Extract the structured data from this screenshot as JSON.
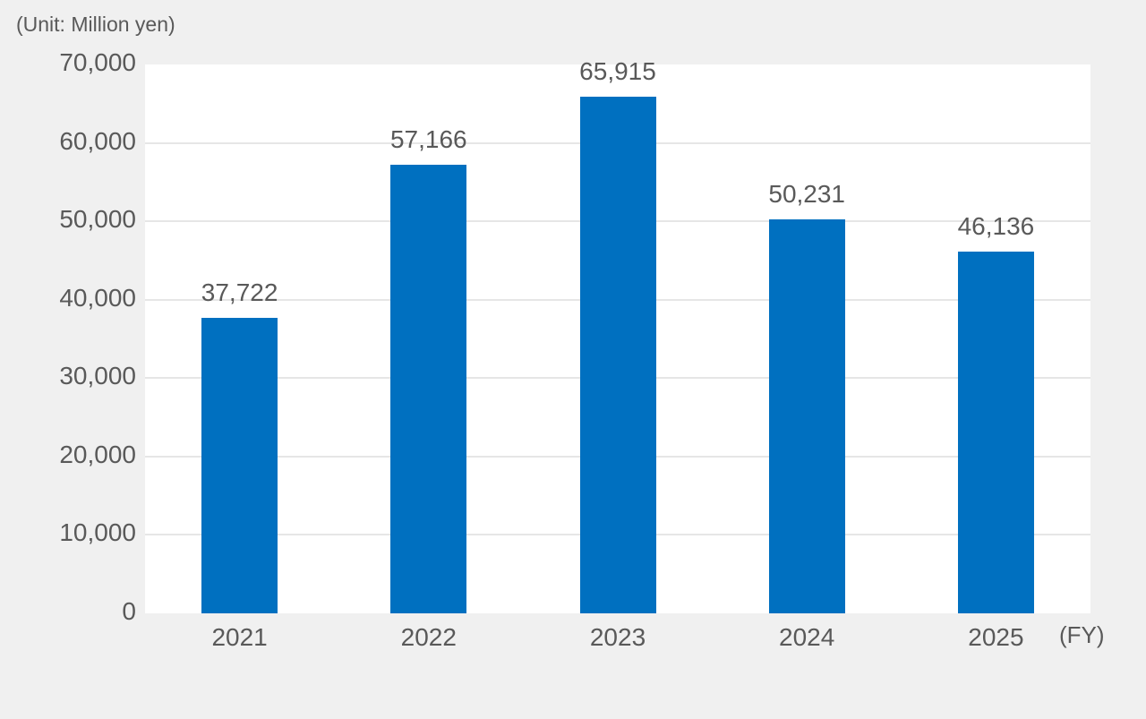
{
  "chart_data": {
    "type": "bar",
    "title": "",
    "unit_label": "(Unit: Million yen)",
    "xlabel": "(FY)",
    "ylabel": "",
    "categories": [
      "2021",
      "2022",
      "2023",
      "2024",
      "2025"
    ],
    "values": [
      37722,
      57166,
      65915,
      50231,
      46136
    ],
    "value_labels": [
      "37,722",
      "57,166",
      "65,915",
      "50,231",
      "46,136"
    ],
    "ylim": [
      0,
      70000
    ],
    "yticks": [
      0,
      10000,
      20000,
      30000,
      40000,
      50000,
      60000,
      70000
    ],
    "ytick_labels": [
      "0",
      "10,000",
      "20,000",
      "30,000",
      "40,000",
      "50,000",
      "60,000",
      "70,000"
    ],
    "grid": true,
    "legend": null,
    "colors": {
      "bar": "#0070c0",
      "background": "#f0f0f0",
      "plot_bg": "#ffffff",
      "grid": "#e6e6e6",
      "text": "#595959"
    }
  }
}
